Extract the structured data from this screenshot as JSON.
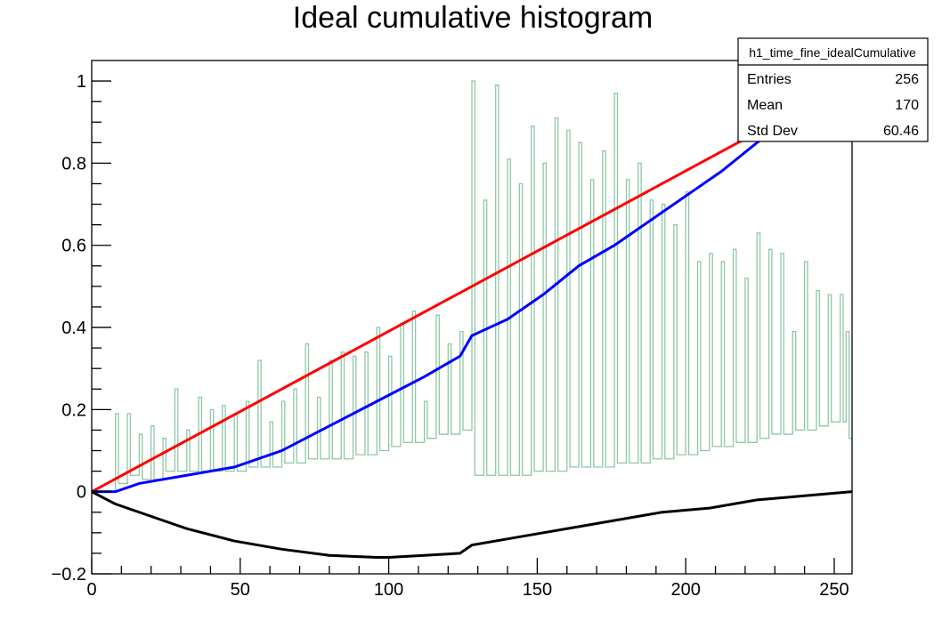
{
  "chart_data": {
    "type": "line",
    "title": "Ideal cumulative histogram",
    "xlabel": "",
    "ylabel": "",
    "xlim": [
      0,
      256
    ],
    "ylim": [
      -0.2,
      1.05
    ],
    "x_ticks": [
      0,
      50,
      100,
      150,
      200,
      250
    ],
    "x_tick_labels": [
      "0",
      "50",
      "100",
      "150",
      "200",
      "250"
    ],
    "y_ticks": [
      -0.2,
      0,
      0.2,
      0.4,
      0.6,
      0.8,
      1
    ],
    "y_tick_labels": [
      "−0.2",
      "0",
      "0.2",
      "0.4",
      "0.6",
      "0.8",
      "1"
    ],
    "grid": false,
    "stats_box": {
      "name": "h1_time_fine_idealCumulative",
      "rows": [
        {
          "label": "Entries",
          "value": "256"
        },
        {
          "label": "Mean",
          "value": "170"
        },
        {
          "label": "Std Dev",
          "value": "60.46"
        }
      ]
    },
    "series": [
      {
        "style": "step-histogram",
        "color": "#8fc7a6",
        "points": [
          [
            0,
            0.0
          ],
          [
            8,
            0.19
          ],
          [
            9,
            0.02
          ],
          [
            12,
            0.19
          ],
          [
            13,
            0.04
          ],
          [
            16,
            0.14
          ],
          [
            17,
            0.03
          ],
          [
            20,
            0.16
          ],
          [
            21,
            0.03
          ],
          [
            24,
            0.13
          ],
          [
            25,
            0.05
          ],
          [
            28,
            0.25
          ],
          [
            29,
            0.05
          ],
          [
            32,
            0.15
          ],
          [
            33,
            0.05
          ],
          [
            36,
            0.23
          ],
          [
            37,
            0.05
          ],
          [
            40,
            0.2
          ],
          [
            41,
            0.05
          ],
          [
            44,
            0.21
          ],
          [
            45,
            0.05
          ],
          [
            48,
            0.19
          ],
          [
            49,
            0.05
          ],
          [
            52,
            0.22
          ],
          [
            53,
            0.06
          ],
          [
            56,
            0.32
          ],
          [
            57,
            0.06
          ],
          [
            60,
            0.17
          ],
          [
            61,
            0.06
          ],
          [
            64,
            0.22
          ],
          [
            65,
            0.07
          ],
          [
            68,
            0.25
          ],
          [
            69,
            0.07
          ],
          [
            72,
            0.36
          ],
          [
            73,
            0.08
          ],
          [
            76,
            0.23
          ],
          [
            77,
            0.08
          ],
          [
            80,
            0.32
          ],
          [
            81,
            0.08
          ],
          [
            84,
            0.34
          ],
          [
            85,
            0.08
          ],
          [
            88,
            0.33
          ],
          [
            89,
            0.09
          ],
          [
            92,
            0.34
          ],
          [
            93,
            0.09
          ],
          [
            96,
            0.4
          ],
          [
            97,
            0.1
          ],
          [
            100,
            0.33
          ],
          [
            101,
            0.11
          ],
          [
            104,
            0.41
          ],
          [
            105,
            0.12
          ],
          [
            108,
            0.44
          ],
          [
            109,
            0.12
          ],
          [
            112,
            0.22
          ],
          [
            113,
            0.13
          ],
          [
            116,
            0.43
          ],
          [
            117,
            0.14
          ],
          [
            120,
            0.36
          ],
          [
            121,
            0.14
          ],
          [
            124,
            0.39
          ],
          [
            125,
            0.15
          ],
          [
            128,
            1.0
          ],
          [
            129,
            0.04
          ],
          [
            132,
            0.71
          ],
          [
            133,
            0.04
          ],
          [
            136,
            0.99
          ],
          [
            137,
            0.04
          ],
          [
            140,
            0.81
          ],
          [
            141,
            0.04
          ],
          [
            144,
            0.75
          ],
          [
            145,
            0.04
          ],
          [
            148,
            0.89
          ],
          [
            149,
            0.05
          ],
          [
            152,
            0.8
          ],
          [
            153,
            0.05
          ],
          [
            156,
            0.91
          ],
          [
            157,
            0.05
          ],
          [
            160,
            0.88
          ],
          [
            161,
            0.06
          ],
          [
            164,
            0.85
          ],
          [
            165,
            0.06
          ],
          [
            168,
            0.76
          ],
          [
            169,
            0.06
          ],
          [
            172,
            0.83
          ],
          [
            173,
            0.06
          ],
          [
            176,
            0.97
          ],
          [
            177,
            0.07
          ],
          [
            180,
            0.76
          ],
          [
            181,
            0.07
          ],
          [
            184,
            0.8
          ],
          [
            185,
            0.07
          ],
          [
            188,
            0.71
          ],
          [
            189,
            0.08
          ],
          [
            192,
            0.7
          ],
          [
            193,
            0.08
          ],
          [
            196,
            0.65
          ],
          [
            197,
            0.09
          ],
          [
            200,
            0.73
          ],
          [
            201,
            0.09
          ],
          [
            204,
            0.56
          ],
          [
            205,
            0.1
          ],
          [
            208,
            0.58
          ],
          [
            209,
            0.11
          ],
          [
            212,
            0.56
          ],
          [
            213,
            0.11
          ],
          [
            216,
            0.59
          ],
          [
            217,
            0.12
          ],
          [
            220,
            0.52
          ],
          [
            221,
            0.12
          ],
          [
            224,
            0.63
          ],
          [
            225,
            0.13
          ],
          [
            228,
            0.59
          ],
          [
            229,
            0.14
          ],
          [
            232,
            0.58
          ],
          [
            233,
            0.14
          ],
          [
            236,
            0.39
          ],
          [
            237,
            0.15
          ],
          [
            240,
            0.56
          ],
          [
            241,
            0.15
          ],
          [
            244,
            0.49
          ],
          [
            245,
            0.16
          ],
          [
            248,
            0.48
          ],
          [
            249,
            0.17
          ],
          [
            252,
            0.48
          ],
          [
            253,
            0.17
          ],
          [
            254,
            0.39
          ],
          [
            255,
            0.13
          ],
          [
            256,
            0.17
          ]
        ]
      },
      {
        "style": "step-line",
        "color": "#ff0000",
        "points": [
          [
            0,
            0.0
          ],
          [
            256,
            1.0
          ]
        ]
      },
      {
        "style": "step-line",
        "color": "#0000ff",
        "points": [
          [
            0,
            0.0
          ],
          [
            8,
            0.0
          ],
          [
            16,
            0.02
          ],
          [
            32,
            0.04
          ],
          [
            48,
            0.06
          ],
          [
            64,
            0.1
          ],
          [
            80,
            0.16
          ],
          [
            96,
            0.22
          ],
          [
            112,
            0.28
          ],
          [
            124,
            0.33
          ],
          [
            128,
            0.38
          ],
          [
            140,
            0.42
          ],
          [
            152,
            0.48
          ],
          [
            164,
            0.55
          ],
          [
            176,
            0.6
          ],
          [
            188,
            0.66
          ],
          [
            200,
            0.72
          ],
          [
            212,
            0.78
          ],
          [
            224,
            0.85
          ],
          [
            240,
            0.93
          ],
          [
            256,
            1.0
          ]
        ]
      },
      {
        "style": "step-line",
        "color": "#000000",
        "points": [
          [
            0,
            0.0
          ],
          [
            8,
            -0.03
          ],
          [
            16,
            -0.05
          ],
          [
            24,
            -0.07
          ],
          [
            32,
            -0.09
          ],
          [
            48,
            -0.12
          ],
          [
            64,
            -0.14
          ],
          [
            80,
            -0.155
          ],
          [
            96,
            -0.16
          ],
          [
            100,
            -0.16
          ],
          [
            112,
            -0.155
          ],
          [
            124,
            -0.15
          ],
          [
            128,
            -0.13
          ],
          [
            144,
            -0.11
          ],
          [
            160,
            -0.09
          ],
          [
            176,
            -0.07
          ],
          [
            192,
            -0.05
          ],
          [
            208,
            -0.04
          ],
          [
            224,
            -0.02
          ],
          [
            240,
            -0.01
          ],
          [
            256,
            0.0
          ]
        ]
      }
    ]
  }
}
